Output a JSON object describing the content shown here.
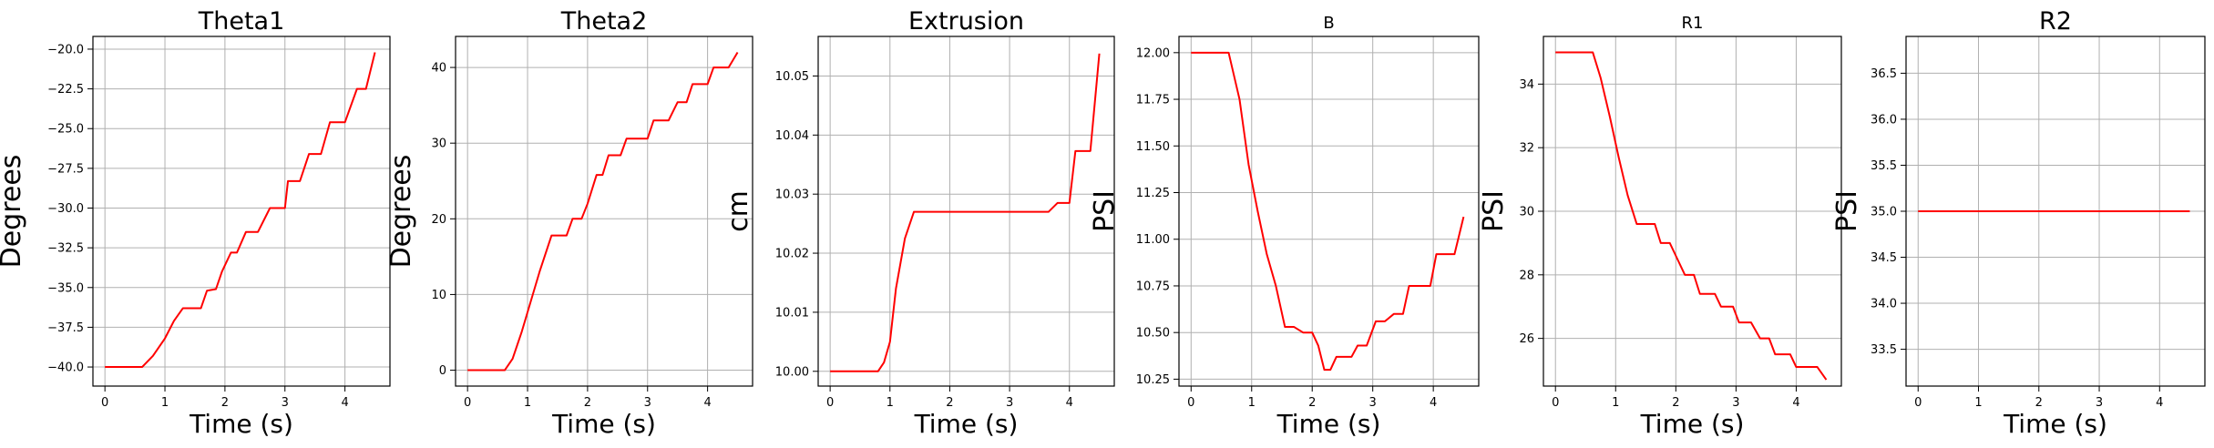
{
  "colors": {
    "line": "#ff0000",
    "grid": "#b0b0b0",
    "axis": "#000000",
    "background": "#ffffff"
  },
  "chart_data": [
    {
      "type": "line",
      "title": "Theta1",
      "title_size": "large",
      "xlabel": "Time (s)",
      "ylabel": "Degrees",
      "xlim": [
        -0.2,
        4.75
      ],
      "ylim": [
        -41.2,
        -19.2
      ],
      "xticks": [
        0,
        1,
        2,
        3,
        4
      ],
      "xtick_labels": [
        "0",
        "1",
        "2",
        "3",
        "4"
      ],
      "yticks": [
        -40,
        -37.5,
        -35,
        -32.5,
        -30,
        -27.5,
        -25,
        -22.5,
        -20
      ],
      "ytick_labels": [
        "−40.0",
        "−37.5",
        "−35.0",
        "−32.5",
        "−30.0",
        "−27.5",
        "−25.0",
        "−22.5",
        "−20.0"
      ],
      "grid": true,
      "series": [
        {
          "color": "#ff0000",
          "x": [
            0,
            0.62,
            0.8,
            1.0,
            1.15,
            1.3,
            1.4,
            1.6,
            1.7,
            1.85,
            1.95,
            2.1,
            2.2,
            2.35,
            2.4,
            2.55,
            2.75,
            2.8,
            3.0,
            3.05,
            3.25,
            3.4,
            3.6,
            3.75,
            3.95,
            4.0,
            4.2,
            4.35,
            4.5
          ],
          "y": [
            -40,
            -40,
            -39.3,
            -38.2,
            -37.1,
            -36.3,
            -36.3,
            -36.3,
            -35.2,
            -35.1,
            -34.0,
            -32.8,
            -32.8,
            -31.5,
            -31.5,
            -31.5,
            -30.0,
            -30.0,
            -30.0,
            -28.3,
            -28.3,
            -26.6,
            -26.6,
            -24.6,
            -24.6,
            -24.6,
            -22.5,
            -22.5,
            -20.2
          ]
        }
      ]
    },
    {
      "type": "line",
      "title": "Theta2",
      "title_size": "large",
      "xlabel": "Time (s)",
      "ylabel": "Degrees",
      "xlim": [
        -0.2,
        4.75
      ],
      "ylim": [
        -2.1,
        44.1
      ],
      "xticks": [
        0,
        1,
        2,
        3,
        4
      ],
      "xtick_labels": [
        "0",
        "1",
        "2",
        "3",
        "4"
      ],
      "yticks": [
        0,
        10,
        20,
        30,
        40
      ],
      "ytick_labels": [
        "0",
        "10",
        "20",
        "30",
        "40"
      ],
      "grid": true,
      "series": [
        {
          "color": "#ff0000",
          "x": [
            0,
            0.62,
            0.75,
            0.9,
            1.05,
            1.2,
            1.4,
            1.5,
            1.65,
            1.75,
            1.9,
            2.0,
            2.15,
            2.25,
            2.35,
            2.55,
            2.65,
            2.85,
            3.0,
            3.1,
            3.35,
            3.5,
            3.65,
            3.75,
            4.0,
            4.1,
            4.35,
            4.5
          ],
          "y": [
            0,
            0,
            1.5,
            5,
            9,
            13,
            17.8,
            17.8,
            17.8,
            20,
            20,
            22,
            25.8,
            25.8,
            28.4,
            28.4,
            30.6,
            30.6,
            30.6,
            33,
            33,
            35.4,
            35.4,
            37.8,
            37.8,
            40,
            40,
            42
          ]
        }
      ]
    },
    {
      "type": "line",
      "title": "Extrusion",
      "title_size": "large",
      "xlabel": "Time (s)",
      "ylabel": "cm",
      "xlim": [
        -0.2,
        4.75
      ],
      "ylim": [
        9.9975,
        10.0567
      ],
      "xticks": [
        0,
        1,
        2,
        3,
        4
      ],
      "xtick_labels": [
        "0",
        "1",
        "2",
        "3",
        "4"
      ],
      "yticks": [
        10.0,
        10.01,
        10.02,
        10.03,
        10.04,
        10.05
      ],
      "ytick_labels": [
        "10.00",
        "10.01",
        "10.02",
        "10.03",
        "10.04",
        "10.05"
      ],
      "grid": true,
      "series": [
        {
          "color": "#ff0000",
          "x": [
            0,
            0.8,
            0.9,
            1.0,
            1.1,
            1.25,
            1.4,
            2.0,
            3.0,
            3.65,
            3.8,
            4.0,
            4.1,
            4.35,
            4.5
          ],
          "y": [
            10.0,
            10.0,
            10.0015,
            10.005,
            10.014,
            10.0225,
            10.027,
            10.027,
            10.027,
            10.027,
            10.0285,
            10.0285,
            10.0373,
            10.0373,
            10.0538
          ]
        }
      ]
    },
    {
      "type": "line",
      "title": "B",
      "title_size": "small",
      "xlabel": "Time (s)",
      "ylabel": "PSI",
      "xlim": [
        -0.2,
        4.75
      ],
      "ylim": [
        10.213,
        12.087
      ],
      "xticks": [
        0,
        1,
        2,
        3,
        4
      ],
      "xtick_labels": [
        "0",
        "1",
        "2",
        "3",
        "4"
      ],
      "yticks": [
        10.25,
        10.5,
        10.75,
        11.0,
        11.25,
        11.5,
        11.75,
        12.0
      ],
      "ytick_labels": [
        "10.25",
        "10.50",
        "10.75",
        "11.00",
        "11.25",
        "11.50",
        "11.75",
        "12.00"
      ],
      "grid": true,
      "series": [
        {
          "color": "#ff0000",
          "x": [
            0,
            0.62,
            0.8,
            0.95,
            1.1,
            1.25,
            1.4,
            1.55,
            1.7,
            1.85,
            2.0,
            2.1,
            2.2,
            2.3,
            2.4,
            2.65,
            2.75,
            2.9,
            3.05,
            3.2,
            3.35,
            3.5,
            3.6,
            3.75,
            3.95,
            4.05,
            4.35,
            4.5
          ],
          "y": [
            12.0,
            12.0,
            11.75,
            11.4,
            11.15,
            10.92,
            10.75,
            10.53,
            10.53,
            10.5,
            10.5,
            10.43,
            10.3,
            10.3,
            10.37,
            10.37,
            10.43,
            10.43,
            10.56,
            10.56,
            10.6,
            10.6,
            10.75,
            10.75,
            10.75,
            10.92,
            10.92,
            11.12
          ]
        }
      ]
    },
    {
      "type": "line",
      "title": "R1",
      "title_size": "small",
      "xlabel": "Time (s)",
      "ylabel": "PSI",
      "xlim": [
        -0.2,
        4.75
      ],
      "ylim": [
        24.5,
        35.5
      ],
      "xticks": [
        0,
        1,
        2,
        3,
        4
      ],
      "xtick_labels": [
        "0",
        "1",
        "2",
        "3",
        "4"
      ],
      "yticks": [
        26,
        28,
        30,
        32,
        34
      ],
      "ytick_labels": [
        "26",
        "28",
        "30",
        "32",
        "34"
      ],
      "grid": true,
      "series": [
        {
          "color": "#ff0000",
          "x": [
            0,
            0.62,
            0.75,
            0.9,
            1.05,
            1.2,
            1.35,
            1.5,
            1.65,
            1.75,
            1.9,
            2.0,
            2.15,
            2.3,
            2.4,
            2.65,
            2.75,
            2.95,
            3.05,
            3.25,
            3.4,
            3.55,
            3.65,
            3.9,
            4.0,
            4.15,
            4.35,
            4.5
          ],
          "y": [
            35,
            35,
            34.2,
            33,
            31.7,
            30.5,
            29.6,
            29.6,
            29.6,
            29.0,
            29.0,
            28.6,
            28.0,
            28.0,
            27.4,
            27.4,
            27.0,
            27.0,
            26.5,
            26.5,
            26.0,
            26.0,
            25.5,
            25.5,
            25.1,
            25.1,
            25.1,
            24.7
          ]
        }
      ]
    },
    {
      "type": "line",
      "title": "R2",
      "title_size": "large",
      "xlabel": "Time (s)",
      "ylabel": "PSI",
      "xlim": [
        -0.2,
        4.75
      ],
      "ylim": [
        33.1,
        36.9
      ],
      "xticks": [
        0,
        1,
        2,
        3,
        4
      ],
      "xtick_labels": [
        "0",
        "1",
        "2",
        "3",
        "4"
      ],
      "yticks": [
        33.5,
        34.0,
        34.5,
        35.0,
        35.5,
        36.0,
        36.5
      ],
      "ytick_labels": [
        "33.5",
        "34.0",
        "34.5",
        "35.0",
        "35.5",
        "36.0",
        "36.5"
      ],
      "grid": true,
      "series": [
        {
          "color": "#ff0000",
          "x": [
            0,
            4.5
          ],
          "y": [
            35,
            35
          ]
        }
      ]
    }
  ]
}
